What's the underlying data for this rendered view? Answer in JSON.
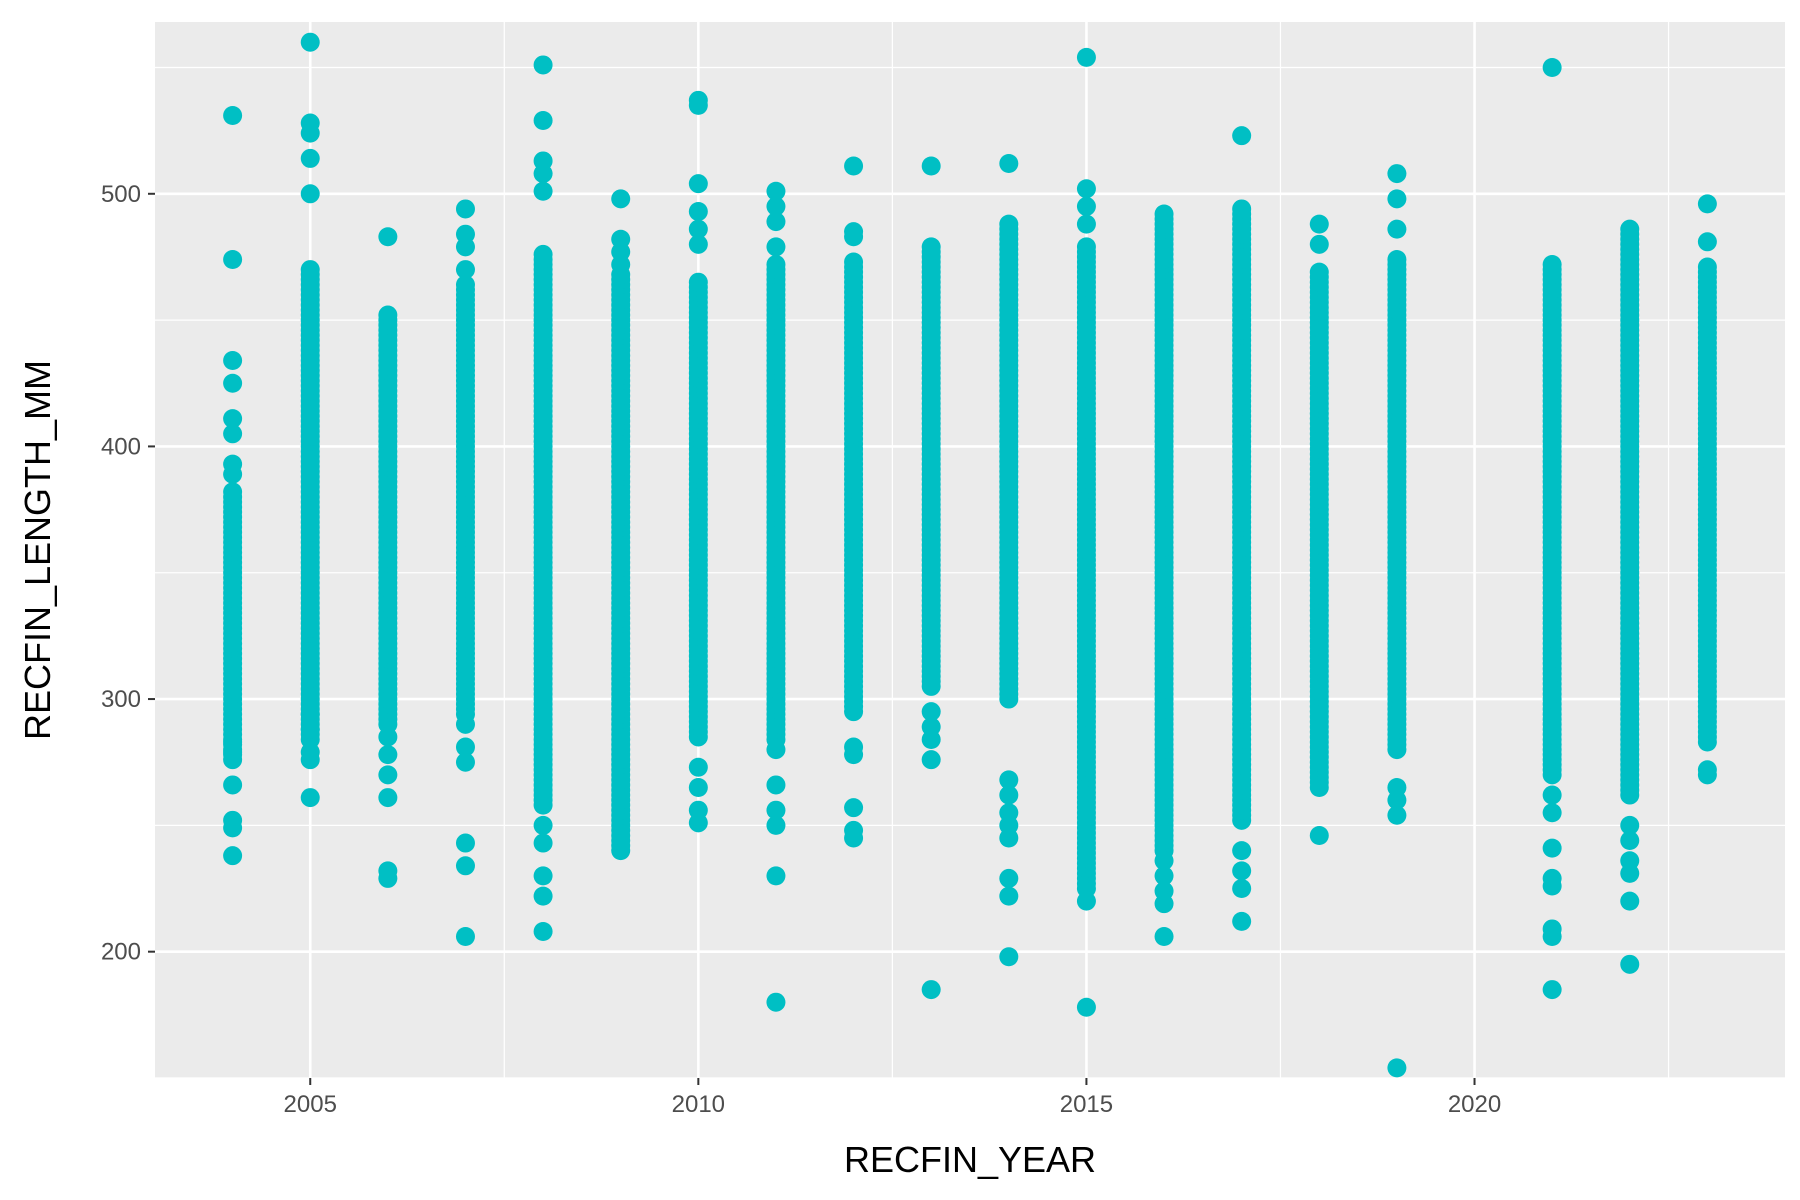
{
  "chart_data": {
    "type": "scatter",
    "title": "",
    "xlabel": "RECFIN_YEAR",
    "ylabel": "RECFIN_LENGTH_MM",
    "xlim": [
      2003,
      2024
    ],
    "ylim": [
      150,
      568
    ],
    "x_ticks": [
      2005,
      2010,
      2015,
      2020
    ],
    "y_ticks": [
      200,
      300,
      400,
      500
    ],
    "x_tick_labels": [
      "2005",
      "2010",
      "2015",
      "2020"
    ],
    "y_tick_labels": [
      "200",
      "300",
      "400",
      "500"
    ],
    "grid": true,
    "point_color": "#00BFC4",
    "panel_background": "#EBEBEB",
    "grid_color": "#FFFFFF",
    "columns": [
      {
        "x": 2004,
        "dense": [
          [
            276,
            383
          ]
        ],
        "points": [
          531,
          474,
          434,
          425,
          411,
          405,
          393,
          389,
          283,
          279,
          266,
          252,
          249,
          238
        ]
      },
      {
        "x": 2005,
        "dense": [
          [
            284,
            470
          ]
        ],
        "points": [
          560,
          528,
          524,
          514,
          500,
          294,
          288,
          279,
          276,
          261
        ]
      },
      {
        "x": 2006,
        "dense": [
          [
            290,
            452
          ]
        ],
        "points": [
          483,
          285,
          278,
          270,
          261,
          232,
          229
        ]
      },
      {
        "x": 2007,
        "dense": [
          [
            294,
            464
          ]
        ],
        "points": [
          494,
          484,
          479,
          470,
          290,
          281,
          275,
          243,
          234,
          206
        ]
      },
      {
        "x": 2008,
        "dense": [
          [
            258,
            476
          ]
        ],
        "points": [
          551,
          529,
          513,
          508,
          501,
          250,
          243,
          230,
          222,
          208
        ]
      },
      {
        "x": 2009,
        "dense": [
          [
            240,
            468
          ]
        ],
        "points": [
          498,
          482,
          477,
          472
        ]
      },
      {
        "x": 2010,
        "dense": [
          [
            285,
            465
          ]
        ],
        "points": [
          537,
          535,
          504,
          493,
          486,
          480,
          273,
          265,
          256,
          251
        ]
      },
      {
        "x": 2011,
        "dense": [
          [
            284,
            472
          ]
        ],
        "points": [
          501,
          495,
          489,
          479,
          280,
          266,
          256,
          250,
          230,
          180
        ]
      },
      {
        "x": 2012,
        "dense": [
          [
            295,
            474
          ]
        ],
        "points": [
          511,
          485,
          483,
          281,
          278,
          257,
          248,
          245
        ]
      },
      {
        "x": 2013,
        "dense": [
          [
            305,
            480
          ]
        ],
        "points": [
          511,
          295,
          289,
          284,
          276,
          185
        ]
      },
      {
        "x": 2014,
        "dense": [
          [
            300,
            488
          ]
        ],
        "points": [
          512,
          268,
          262,
          255,
          250,
          245,
          229,
          222,
          198
        ]
      },
      {
        "x": 2015,
        "dense": [
          [
            225,
            480
          ]
        ],
        "points": [
          554,
          502,
          495,
          488,
          220,
          178
        ]
      },
      {
        "x": 2016,
        "dense": [
          [
            240,
            493
          ]
        ],
        "points": [
          236,
          230,
          224,
          219,
          206
        ]
      },
      {
        "x": 2017,
        "dense": [
          [
            252,
            495
          ]
        ],
        "points": [
          523,
          240,
          232,
          225,
          212
        ]
      },
      {
        "x": 2018,
        "dense": [
          [
            267,
            470
          ]
        ],
        "points": [
          488,
          480,
          265,
          246
        ]
      },
      {
        "x": 2019,
        "dense": [
          [
            280,
            474
          ]
        ],
        "points": [
          508,
          498,
          486,
          265,
          260,
          254,
          154
        ]
      },
      {
        "x": 2021,
        "dense": [
          [
            270,
            472
          ]
        ],
        "points": [
          550,
          262,
          255,
          241,
          229,
          226,
          209,
          206,
          185
        ]
      },
      {
        "x": 2022,
        "dense": [
          [
            262,
            486
          ]
        ],
        "points": [
          250,
          244,
          236,
          231,
          220,
          195
        ]
      },
      {
        "x": 2023,
        "dense": [
          [
            283,
            472
          ]
        ],
        "points": [
          496,
          481,
          272,
          270
        ]
      }
    ]
  }
}
